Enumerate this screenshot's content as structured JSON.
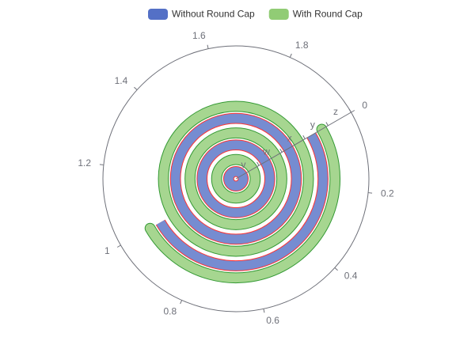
{
  "chart_data": {
    "type": "polar-bar",
    "categories": [
      "v",
      "w",
      "x",
      "y",
      "z"
    ],
    "series": [
      {
        "name": "Without Round Cap",
        "color": "#5470c6",
        "border_color": "red",
        "round_cap": false,
        "values": [
          4,
          3,
          2,
          1,
          0
        ]
      },
      {
        "name": "With Round Cap",
        "color": "#91cc75",
        "border_color": "green",
        "round_cap": true,
        "values": [
          4,
          3,
          2,
          1,
          0
        ]
      }
    ],
    "angle_lim": [
      0,
      2
    ],
    "angle_ticks": [
      0,
      0.2,
      0.4,
      0.6,
      0.8,
      1,
      1.2,
      1.4,
      1.6,
      1.8
    ],
    "start_angle": 30
  }
}
